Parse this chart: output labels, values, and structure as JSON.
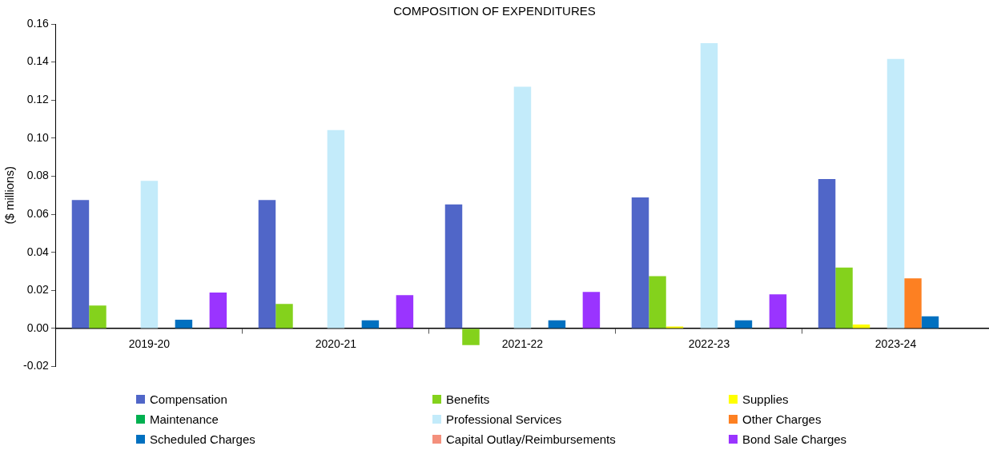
{
  "chart_data": {
    "type": "bar",
    "title": "COMPOSITION OF EXPENDITURES",
    "ylabel": "($ millions)",
    "categories": [
      "2019-20",
      "2020-21",
      "2021-22",
      "2022-23",
      "2023-24"
    ],
    "series": [
      {
        "name": "Compensation",
        "color": "#5066c8",
        "values": [
          0.0675,
          0.0675,
          0.0652,
          0.0689,
          0.0785
        ]
      },
      {
        "name": "Benefits",
        "color": "#84d21c",
        "values": [
          0.0121,
          0.0129,
          -0.0087,
          0.0275,
          0.032
        ]
      },
      {
        "name": "Supplies",
        "color": "#ffff00",
        "values": [
          null,
          null,
          null,
          0.001,
          0.0021
        ]
      },
      {
        "name": "Maintenance",
        "color": "#00b050",
        "values": [
          0,
          0,
          0,
          0,
          0
        ]
      },
      {
        "name": "Professional Services",
        "color": "#c3ebfa",
        "values": [
          0.0776,
          0.1042,
          0.127,
          0.1499,
          0.1416
        ]
      },
      {
        "name": "Other Charges",
        "color": "#fd8022",
        "values": [
          0,
          0,
          0,
          0,
          0.0263
        ]
      },
      {
        "name": "Scheduled Charges",
        "color": "#0070c0",
        "values": [
          0.0046,
          0.0043,
          0.0043,
          0.0043,
          0.0064
        ]
      },
      {
        "name": "Capital Outlay/Reimbursements",
        "color": "#f4907c",
        "values": [
          0,
          0,
          0,
          0,
          0
        ]
      },
      {
        "name": "Bond Sale Charges",
        "color": "#9a34ff",
        "values": [
          0.0189,
          0.0175,
          0.0192,
          0.0179,
          0
        ]
      }
    ],
    "ylim": [
      -0.02,
      0.16
    ],
    "yticks": [
      {
        "value": -0.02,
        "label": "-0.02"
      },
      {
        "value": 0,
        "label": "0.00"
      },
      {
        "value": 0.02,
        "label": "0.02"
      },
      {
        "value": 0.04,
        "label": "0.04"
      },
      {
        "value": 0.06,
        "label": "0.06"
      },
      {
        "value": 0.08,
        "label": "0.08"
      },
      {
        "value": 0.1,
        "label": "0.10"
      },
      {
        "value": 0.12,
        "label": "0.12"
      },
      {
        "value": 0.14,
        "label": "0.14"
      },
      {
        "value": 0.16,
        "label": "0.16"
      }
    ],
    "grid": false,
    "legend": "bottom"
  }
}
